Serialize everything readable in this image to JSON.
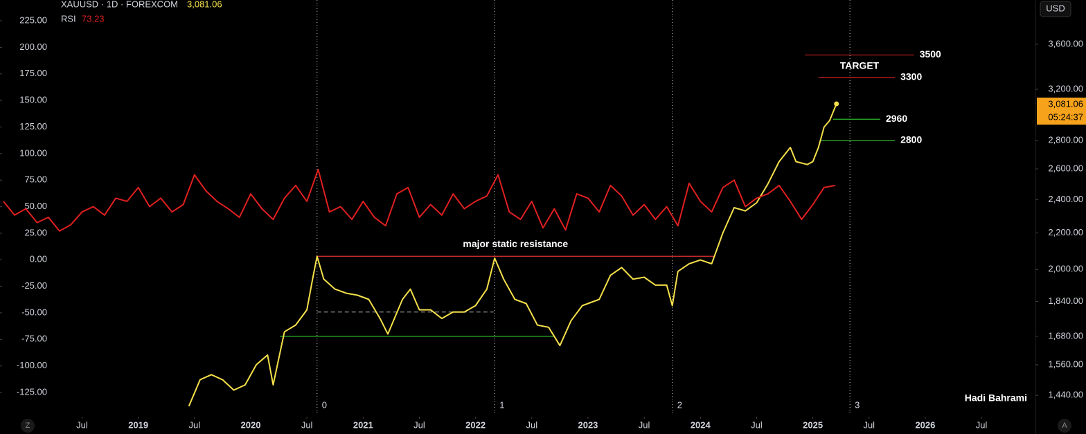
{
  "chart_data": {
    "type": "line",
    "last_price": {
      "value": 3081.06,
      "label": "3,081.06"
    },
    "rsi_last": 73.23,
    "countdown": "05:24:37",
    "currency": "USD",
    "xlim": [
      2017.77,
      2026.98
    ],
    "xticks": [
      {
        "value": 2018.5,
        "label": "Jul"
      },
      2019,
      {
        "value": 2019.5,
        "label": "Jul"
      },
      2020,
      {
        "value": 2020.5,
        "label": "Jul"
      },
      2021,
      {
        "value": 2021.5,
        "label": "Jul"
      },
      2022,
      {
        "value": 2022.5,
        "label": "Jul"
      },
      2023,
      {
        "value": 2023.5,
        "label": "Jul"
      },
      2024,
      {
        "value": 2024.5,
        "label": "Jul"
      },
      2025,
      {
        "value": 2025.5,
        "label": "Jul"
      },
      2026,
      {
        "value": 2026.5,
        "label": "Jul"
      }
    ],
    "ylim": [
      1367,
      4040
    ],
    "log_scale": true,
    "yticks": [
      {
        "value": 3600,
        "label": "3,600.00"
      },
      {
        "value": 3200,
        "label": "3,200.00"
      },
      {
        "value": 2800,
        "label": "2,800.00"
      },
      {
        "value": 2600,
        "label": "2,600.00"
      },
      {
        "value": 2400,
        "label": "2,400.00"
      },
      {
        "value": 2200,
        "label": "2,200.00"
      },
      {
        "value": 2000,
        "label": "2,000.00"
      },
      {
        "value": 1840,
        "label": "1,840.00"
      },
      {
        "value": 1680,
        "label": "1,680.00"
      },
      {
        "value": 1560,
        "label": "1,560.00"
      },
      {
        "value": 1440,
        "label": "1,440.00"
      }
    ],
    "y2lim": [
      -146.5,
      244.6
    ],
    "y2ticks": [
      {
        "value": 225,
        "label": "225.00"
      },
      {
        "value": 200,
        "label": "200.00"
      },
      {
        "value": 175,
        "label": "175.00"
      },
      {
        "value": 150,
        "label": "150.00"
      },
      {
        "value": 125,
        "label": "125.00"
      },
      {
        "value": 100,
        "label": "100.00"
      },
      {
        "value": 75,
        "label": "75.00"
      },
      {
        "value": 50,
        "label": "50.00"
      },
      {
        "value": 25,
        "label": "25.00"
      },
      {
        "value": 0,
        "label": "0.00"
      },
      {
        "value": -25,
        "label": "-25.00"
      },
      {
        "value": -50,
        "label": "-50.00"
      },
      {
        "value": -75,
        "label": "-75.00"
      },
      {
        "value": -100,
        "label": "-100.00"
      },
      {
        "value": -125,
        "label": "-125.00"
      }
    ],
    "series": [
      {
        "name": "XAUUSD · 1D · FOREXCOM",
        "color": "#f5e04a",
        "x": [
          2019.45,
          2019.55,
          2019.65,
          2019.75,
          2019.85,
          2019.95,
          2020.05,
          2020.15,
          2020.2,
          2020.3,
          2020.4,
          2020.5,
          2020.55,
          2020.59,
          2020.65,
          2020.75,
          2020.85,
          2020.95,
          2021.05,
          2021.15,
          2021.22,
          2021.35,
          2021.42,
          2021.5,
          2021.6,
          2021.7,
          2021.8,
          2021.9,
          2022.0,
          2022.1,
          2022.17,
          2022.25,
          2022.35,
          2022.45,
          2022.55,
          2022.65,
          2022.75,
          2022.85,
          2022.95,
          2023.0,
          2023.1,
          2023.2,
          2023.3,
          2023.4,
          2023.5,
          2023.6,
          2023.7,
          2023.75,
          2023.8,
          2023.9,
          2024.0,
          2024.1,
          2024.2,
          2024.3,
          2024.4,
          2024.5,
          2024.6,
          2024.7,
          2024.8,
          2024.85,
          2024.95,
          2025.0,
          2025.05,
          2025.1,
          2025.15,
          2025.21
        ],
        "values": [
          1400,
          1500,
          1520,
          1500,
          1460,
          1480,
          1560,
          1600,
          1480,
          1700,
          1730,
          1800,
          1950,
          2070,
          1950,
          1900,
          1880,
          1870,
          1850,
          1760,
          1690,
          1850,
          1900,
          1800,
          1800,
          1760,
          1790,
          1790,
          1820,
          1900,
          2060,
          1950,
          1850,
          1830,
          1730,
          1720,
          1640,
          1750,
          1820,
          1830,
          1850,
          1970,
          2010,
          1950,
          1960,
          1920,
          1920,
          1820,
          1990,
          2030,
          2050,
          2030,
          2200,
          2350,
          2330,
          2380,
          2500,
          2650,
          2750,
          2650,
          2630,
          2650,
          2750,
          2900,
          2950,
          3081.06
        ]
      },
      {
        "name": "RSI",
        "color": "#e0201f",
        "axis": "y2",
        "x": [
          2017.8,
          2017.9,
          2018.0,
          2018.1,
          2018.2,
          2018.3,
          2018.4,
          2018.5,
          2018.6,
          2018.7,
          2018.8,
          2018.9,
          2019.0,
          2019.1,
          2019.2,
          2019.3,
          2019.4,
          2019.5,
          2019.6,
          2019.7,
          2019.8,
          2019.9,
          2020.0,
          2020.1,
          2020.2,
          2020.3,
          2020.4,
          2020.5,
          2020.6,
          2020.7,
          2020.8,
          2020.9,
          2021.0,
          2021.1,
          2021.2,
          2021.3,
          2021.4,
          2021.5,
          2021.6,
          2021.7,
          2021.8,
          2021.9,
          2022.0,
          2022.1,
          2022.2,
          2022.3,
          2022.4,
          2022.5,
          2022.6,
          2022.7,
          2022.8,
          2022.9,
          2023.0,
          2023.1,
          2023.2,
          2023.3,
          2023.4,
          2023.5,
          2023.6,
          2023.7,
          2023.8,
          2023.9,
          2024.0,
          2024.1,
          2024.2,
          2024.3,
          2024.4,
          2024.5,
          2024.6,
          2024.7,
          2024.8,
          2024.9,
          2025.0,
          2025.1,
          2025.2
        ],
        "values": [
          55,
          42,
          48,
          35,
          40,
          27,
          33,
          45,
          50,
          42,
          58,
          55,
          68,
          50,
          58,
          45,
          52,
          80,
          65,
          55,
          48,
          40,
          62,
          48,
          38,
          58,
          70,
          55,
          85,
          45,
          50,
          38,
          55,
          40,
          32,
          62,
          68,
          40,
          52,
          42,
          62,
          48,
          55,
          60,
          80,
          45,
          38,
          55,
          30,
          48,
          28,
          62,
          58,
          45,
          70,
          60,
          42,
          52,
          38,
          50,
          32,
          72,
          55,
          45,
          68,
          75,
          50,
          58,
          62,
          70,
          55,
          38,
          52,
          68,
          70
        ]
      }
    ],
    "levels": [
      {
        "value": 3500,
        "color": "#d42020",
        "x": [
          2024.93,
          2025.9
        ]
      },
      {
        "value": 3300,
        "color": "#d42020",
        "x": [
          2025.05,
          2025.73
        ]
      },
      {
        "value": 2960,
        "color": "#2db82d",
        "x": [
          2025.18,
          2025.6
        ]
      },
      {
        "value": 2800,
        "color": "#2db82d",
        "x": [
          2025.07,
          2025.73
        ]
      }
    ],
    "target_label": "TARGET",
    "resistance": {
      "value": 2070,
      "color": "#e03030",
      "x": [
        2020.59,
        2024.12
      ],
      "label": "major static resistance"
    },
    "support": {
      "value": 1680,
      "color": "#2db82d",
      "x": [
        2020.26,
        2022.7
      ]
    },
    "midline": {
      "value": 1790,
      "color": "#8a8a8a",
      "x": [
        2020.59,
        2022.16
      ]
    },
    "cycles": [
      {
        "x": 2020.59,
        "label": "0"
      },
      {
        "x": 2022.17,
        "label": "1"
      },
      {
        "x": 2023.75,
        "label": "2"
      },
      {
        "x": 2025.33,
        "label": "3"
      }
    ],
    "author": "Hadi Bahrami",
    "buttons": [
      "Z",
      "A"
    ]
  }
}
